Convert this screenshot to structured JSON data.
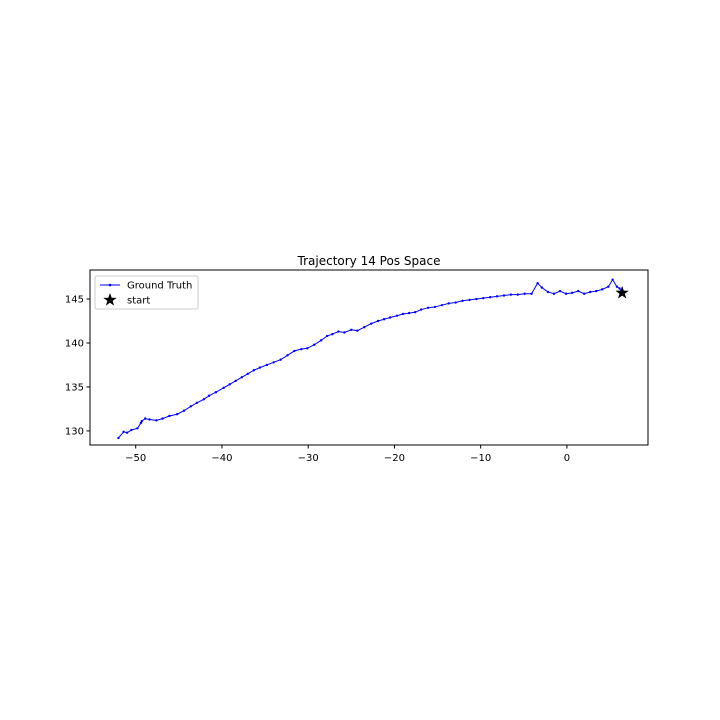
{
  "chart_data": {
    "type": "line",
    "title": "Trajectory 14 Pos Space",
    "xlabel": "",
    "ylabel": "",
    "xlim": [
      -55.3,
      9.4
    ],
    "ylim": [
      128.4,
      148.3
    ],
    "xticks": [
      -50,
      -40,
      -30,
      -20,
      -10,
      0
    ],
    "yticks": [
      130,
      135,
      140,
      145
    ],
    "grid": false,
    "legend": {
      "placement": "upper-left",
      "entries": [
        "Ground Truth",
        "start"
      ]
    },
    "colors": {
      "ground_truth": "#0000ff",
      "start": "#000000"
    },
    "series": [
      {
        "name": "Ground Truth",
        "marker": "dot",
        "x": [
          -52.0,
          -51.4,
          -51.0,
          -50.5,
          -49.8,
          -49.4,
          -49.3,
          -48.9,
          -48.4,
          -47.6,
          -46.9,
          -46.1,
          -45.2,
          -44.4,
          -43.6,
          -42.9,
          -42.1,
          -41.5,
          -40.7,
          -39.8,
          -39.1,
          -38.4,
          -37.7,
          -37.0,
          -36.3,
          -35.6,
          -34.8,
          -34.0,
          -33.2,
          -32.4,
          -31.6,
          -30.8,
          -30.1,
          -29.3,
          -28.5,
          -27.8,
          -27.2,
          -26.5,
          -25.8,
          -25.0,
          -24.3,
          -23.5,
          -22.7,
          -21.9,
          -21.2,
          -20.5,
          -19.7,
          -19.0,
          -18.3,
          -17.6,
          -16.9,
          -16.1,
          -15.3,
          -14.5,
          -13.7,
          -12.9,
          -12.1,
          -11.3,
          -10.5,
          -9.7,
          -8.9,
          -8.1,
          -7.3,
          -6.5,
          -5.7,
          -4.9,
          -4.1,
          -3.4,
          -2.9,
          -2.2,
          -1.5,
          -0.8,
          -0.1,
          0.6,
          1.3,
          2.0,
          2.7,
          3.4,
          4.1,
          4.8,
          5.3,
          5.8,
          6.1,
          6.4
        ],
        "y": [
          129.2,
          129.9,
          129.8,
          130.1,
          130.3,
          130.9,
          131.1,
          131.4,
          131.3,
          131.2,
          131.4,
          131.7,
          131.9,
          132.3,
          132.8,
          133.2,
          133.6,
          134.0,
          134.4,
          134.9,
          135.3,
          135.7,
          136.1,
          136.5,
          136.9,
          137.2,
          137.5,
          137.8,
          138.1,
          138.6,
          139.1,
          139.3,
          139.4,
          139.8,
          140.3,
          140.8,
          141.0,
          141.3,
          141.2,
          141.5,
          141.4,
          141.8,
          142.2,
          142.5,
          142.7,
          142.9,
          143.1,
          143.3,
          143.4,
          143.5,
          143.8,
          144.0,
          144.1,
          144.3,
          144.5,
          144.6,
          144.8,
          144.9,
          145.0,
          145.1,
          145.2,
          145.3,
          145.4,
          145.5,
          145.5,
          145.6,
          145.6,
          146.8,
          146.3,
          145.8,
          145.6,
          145.9,
          145.6,
          145.7,
          145.9,
          145.6,
          145.8,
          145.9,
          146.1,
          146.4,
          147.2,
          146.4,
          146.2,
          145.7
        ]
      },
      {
        "name": "start",
        "marker": "star",
        "x": [
          6.4
        ],
        "y": [
          145.7
        ]
      }
    ]
  }
}
